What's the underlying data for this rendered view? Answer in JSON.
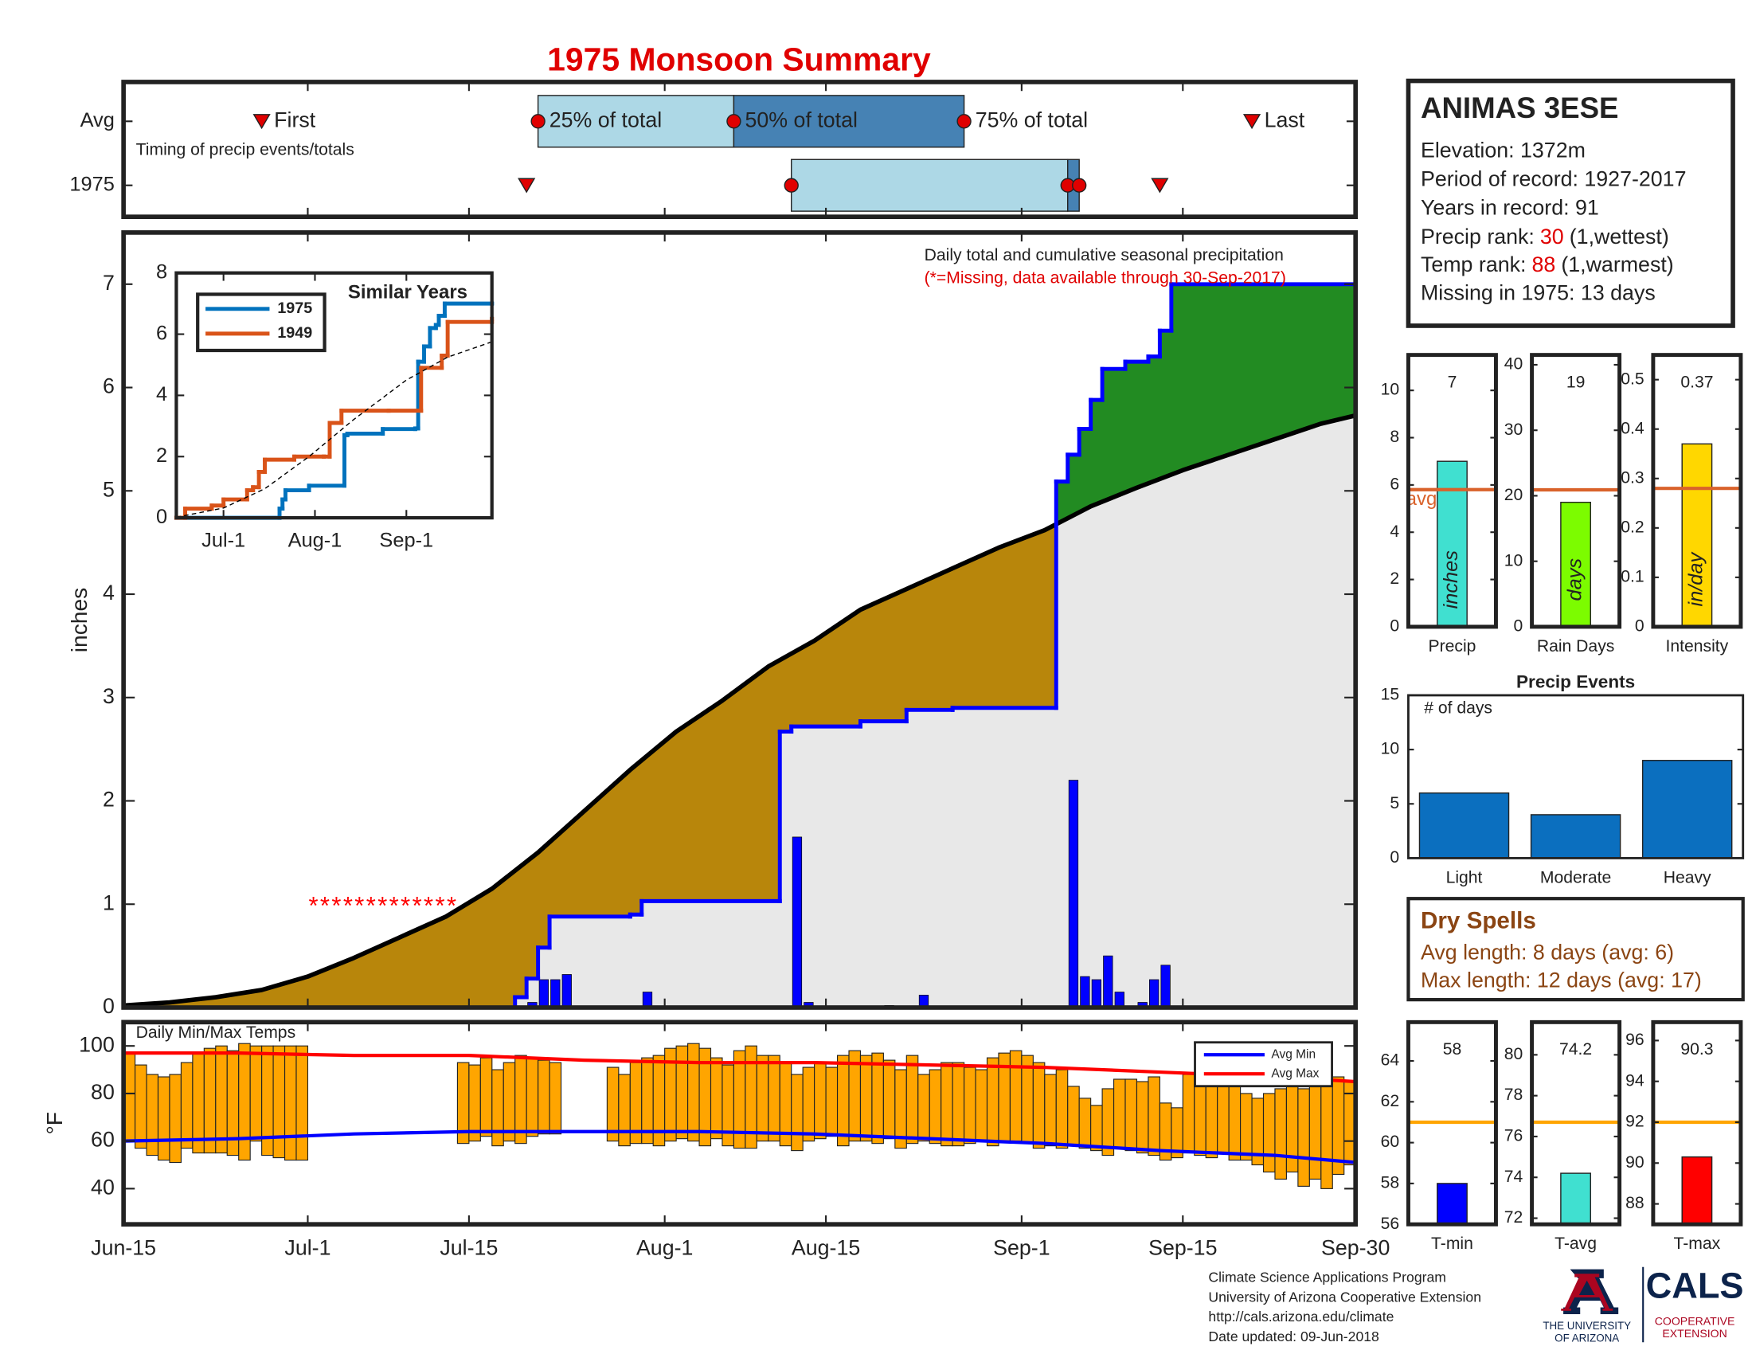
{
  "title": "1975 Monsoon Summary",
  "station": {
    "name": "ANIMAS 3ESE",
    "lines": [
      "Elevation: 1372m",
      "Period of record: 1927-2017",
      "Years in record: 91"
    ],
    "ranks": [
      {
        "label": "Precip rank:",
        "value": 30,
        "note": "(1,wettest)"
      },
      {
        "label": "Temp rank:",
        "value": 88,
        "note": "(1,warmest)"
      }
    ],
    "missing": "Missing in 1975: 13 days"
  },
  "dry_spells": {
    "title": "Dry Spells",
    "lines": [
      "Avg length: 8 days (avg: 6)",
      "Max length: 12 days (avg: 17)"
    ]
  },
  "footer": {
    "lines": [
      "Climate Science Applications Program",
      "University of Arizona Cooperative Extension",
      "http://cals.arizona.edu/climate",
      "Date updated: 09-Jun-2018"
    ],
    "logo": {
      "university": [
        "THE UNIVERSITY",
        "OF ARIZONA"
      ],
      "cals": "CALS",
      "extension": [
        "COOPERATIVE",
        "EXTENSION"
      ]
    }
  },
  "chart_data": [
    {
      "type": "timing",
      "annotation": "Timing of precip events/totals",
      "xlim": [
        0,
        107
      ],
      "rows": [
        {
          "name": "Avg",
          "first": 12,
          "p25": 36,
          "p50": 53,
          "p75": 73,
          "last": 98
        },
        {
          "name": "1975",
          "first": 35,
          "p25": 58,
          "p50": 82,
          "p75": 83,
          "last": 90
        }
      ],
      "marker_labels": {
        "first": "First",
        "p25": "25% of total",
        "p50": "50% of total",
        "p75": "75% of total",
        "last": "Last"
      },
      "colors": {
        "early": "#add8e6",
        "late": "#4682b4",
        "marker": "#e00000"
      }
    },
    {
      "type": "cumulative",
      "annotation": "Daily total and cumulative seasonal precipitation",
      "note": "(*=Missing, data available through 30-Sep-2017)",
      "ylabel": "inches",
      "xlim": [
        0,
        107
      ],
      "ylim": [
        0,
        7.5
      ],
      "yticks": [
        0,
        1,
        2,
        3,
        4,
        5,
        6,
        7
      ],
      "average": {
        "color": "#000000",
        "x": [
          0,
          4,
          8,
          12,
          16,
          20,
          24,
          28,
          32,
          36,
          40,
          44,
          48,
          52,
          56,
          60,
          64,
          68,
          72,
          76,
          80,
          84,
          88,
          92,
          96,
          100,
          104,
          107
        ],
        "values": [
          0.02,
          0.05,
          0.1,
          0.17,
          0.3,
          0.48,
          0.68,
          0.88,
          1.15,
          1.5,
          1.9,
          2.3,
          2.67,
          2.97,
          3.3,
          3.55,
          3.85,
          4.05,
          4.25,
          4.45,
          4.62,
          4.85,
          5.03,
          5.2,
          5.35,
          5.5,
          5.65,
          5.73
        ]
      },
      "year": {
        "color": "#0000ff",
        "x": [
          0,
          34,
          35,
          36,
          37,
          44,
          45,
          57,
          58,
          64,
          68,
          72,
          81,
          82,
          83,
          84,
          85,
          87,
          89,
          90,
          91,
          107
        ],
        "values": [
          0,
          0.1,
          0.28,
          0.58,
          0.88,
          0.9,
          1.03,
          2.67,
          2.72,
          2.77,
          2.88,
          2.9,
          5.09,
          5.35,
          5.6,
          5.88,
          6.18,
          6.25,
          6.3,
          6.55,
          7.0,
          7.0
        ]
      },
      "daily": {
        "color": "#0000ff",
        "x": [
          35,
          36,
          37,
          38,
          45,
          58,
          59,
          66,
          69,
          82,
          83,
          84,
          85,
          86,
          88,
          89,
          90
        ],
        "values": [
          0.05,
          0.27,
          0.27,
          0.32,
          0.15,
          1.65,
          0.05,
          0.02,
          0.12,
          2.2,
          0.3,
          0.27,
          0.5,
          0.15,
          0.05,
          0.27,
          0.41
        ]
      },
      "missing": {
        "marker": "*",
        "color": "#ff0000",
        "y": 1,
        "x": [
          16,
          17,
          18,
          19,
          20,
          21,
          22,
          23,
          24,
          25,
          26,
          27,
          28
        ]
      },
      "fill_colors": {
        "below": "#e8e8e8",
        "deficit": "#b8860b",
        "surplus": "#228b22"
      }
    },
    {
      "type": "line",
      "title": "Similar Years",
      "step": true,
      "xlim": [
        0,
        107
      ],
      "ylim": [
        0,
        8
      ],
      "yticks": [
        0,
        2,
        4,
        6,
        8
      ],
      "xticks": [
        {
          "value": 16,
          "label": "Jul-1"
        },
        {
          "value": 47,
          "label": "Aug-1"
        },
        {
          "value": 78,
          "label": "Sep-1"
        }
      ],
      "series": [
        {
          "name": "1975",
          "color": "#0072bd",
          "x": [
            0,
            35,
            36,
            37,
            45,
            57,
            58,
            70,
            81,
            82,
            84,
            86,
            88,
            89,
            91,
            107
          ],
          "values": [
            0,
            0.3,
            0.6,
            0.9,
            1.05,
            2.7,
            2.75,
            2.9,
            2.92,
            5.1,
            5.6,
            6.2,
            6.3,
            6.6,
            7.0,
            7.0
          ]
        },
        {
          "name": "1949",
          "color": "#d95319",
          "x": [
            0,
            3,
            12,
            16,
            24,
            26,
            28,
            30,
            40,
            50,
            52,
            56,
            72,
            83,
            90,
            92,
            107
          ],
          "values": [
            0,
            0.3,
            0.4,
            0.6,
            0.9,
            1.0,
            1.5,
            1.9,
            2.0,
            2.0,
            3.1,
            3.5,
            3.5,
            4.9,
            5.3,
            6.4,
            6.5
          ]
        },
        {
          "color": "#000000",
          "dashed": true,
          "x": [
            0,
            16,
            30,
            45,
            60,
            78,
            92,
            107
          ],
          "values": [
            0.02,
            0.32,
            0.95,
            2.0,
            3.2,
            4.5,
            5.25,
            5.75
          ]
        }
      ]
    },
    {
      "type": "summary-bar",
      "categories": [
        "Precip"
      ],
      "values": [
        7
      ],
      "unit": "inches",
      "color": "#40e0d0",
      "avg": 5.8,
      "avg_label": "avg",
      "avg_color": "#d9622b",
      "ylim": [
        0,
        11.5
      ],
      "yticks": [
        0,
        2,
        4,
        6,
        8,
        10
      ]
    },
    {
      "type": "summary-bar",
      "categories": [
        "Rain Days"
      ],
      "values": [
        19
      ],
      "unit": "days",
      "color": "#7cfc00",
      "avg": 20.9,
      "avg_color": "#d9622b",
      "ylim": [
        0,
        41.5
      ],
      "yticks": [
        0,
        10,
        20,
        30,
        40
      ]
    },
    {
      "type": "summary-bar",
      "categories": [
        "Intensity"
      ],
      "values": [
        0.37
      ],
      "unit": "in/day",
      "color": "#ffd700",
      "avg": 0.28,
      "avg_color": "#d9622b",
      "ylim": [
        0,
        0.55
      ],
      "yticks": [
        0,
        0.1,
        0.2,
        0.3,
        0.4,
        0.5
      ]
    },
    {
      "type": "bar",
      "title": "Precip Events",
      "annotation": "# of days",
      "categories": [
        "Light",
        "Moderate",
        "Heavy"
      ],
      "values": [
        6,
        4,
        9
      ],
      "color": "#0b6fbf",
      "ylim": [
        0,
        15
      ],
      "yticks": [
        0,
        5,
        10,
        15
      ]
    },
    {
      "type": "range-bar",
      "title": "Daily Min/Max Temps",
      "ylabel": "°F",
      "color": "#ffa500",
      "legend": "upper right",
      "xlim": [
        0,
        107
      ],
      "ylim": [
        25,
        110
      ],
      "yticks": [
        40,
        60,
        80,
        100
      ],
      "xticks": [
        {
          "value": 0,
          "label": "Jun-15"
        },
        {
          "value": 16,
          "label": "Jul-1"
        },
        {
          "value": 30,
          "label": "Jul-15"
        },
        {
          "value": 47,
          "label": "Aug-1"
        },
        {
          "value": 61,
          "label": "Aug-15"
        },
        {
          "value": 78,
          "label": "Sep-1"
        },
        {
          "value": 92,
          "label": "Sep-15"
        },
        {
          "value": 107,
          "label": "Sep-30"
        }
      ],
      "x": [
        0,
        1,
        2,
        3,
        4,
        5,
        6,
        7,
        8,
        9,
        10,
        11,
        12,
        13,
        14,
        15,
        16,
        17,
        18,
        19,
        20,
        21,
        22,
        23,
        24,
        25,
        26,
        27,
        28,
        29,
        30,
        31,
        32,
        33,
        34,
        35,
        36,
        37,
        38,
        39,
        40,
        41,
        42,
        43,
        44,
        45,
        46,
        47,
        48,
        49,
        50,
        51,
        52,
        53,
        54,
        55,
        56,
        57,
        58,
        59,
        60,
        61,
        62,
        63,
        64,
        65,
        66,
        67,
        68,
        69,
        70,
        71,
        72,
        73,
        74,
        75,
        76,
        77,
        78,
        79,
        80,
        81,
        82,
        83,
        84,
        85,
        86,
        87,
        88,
        89,
        90,
        91,
        92,
        93,
        94,
        95,
        96,
        97,
        98,
        99,
        100,
        101,
        102,
        103,
        104,
        105,
        106
      ],
      "max": [
        97,
        92,
        88,
        87,
        88,
        93,
        97,
        99,
        100,
        98,
        101,
        100,
        100,
        100,
        100,
        100,
        null,
        null,
        null,
        null,
        null,
        null,
        null,
        null,
        null,
        null,
        null,
        null,
        null,
        93,
        92,
        95,
        90,
        93,
        96,
        95,
        94,
        93,
        null,
        null,
        null,
        null,
        91,
        88,
        93,
        95,
        96,
        99,
        100,
        101,
        99,
        95,
        92,
        98,
        100,
        96,
        96,
        93,
        88,
        91,
        93,
        91,
        96,
        98,
        96,
        97,
        94,
        90,
        96,
        88,
        90,
        93,
        93,
        91,
        90,
        95,
        97,
        98,
        96,
        93,
        88,
        90,
        83,
        78,
        75,
        82,
        86,
        86,
        85,
        87,
        76,
        74,
        88,
        89,
        88,
        87,
        85,
        80,
        78,
        80,
        82,
        83,
        82,
        86,
        87,
        87,
        85
      ],
      "min": [
        60,
        57,
        54,
        52,
        51,
        57,
        55,
        55,
        55,
        54,
        52,
        60,
        54,
        53,
        52,
        52,
        null,
        null,
        null,
        null,
        null,
        null,
        null,
        null,
        null,
        null,
        null,
        null,
        null,
        59,
        60,
        62,
        58,
        60,
        59,
        62,
        63,
        63,
        null,
        null,
        null,
        null,
        60,
        58,
        59,
        59,
        58,
        60,
        61,
        60,
        58,
        61,
        58,
        57,
        57,
        60,
        60,
        58,
        56,
        60,
        61,
        62,
        58,
        60,
        60,
        59,
        61,
        57,
        59,
        60,
        59,
        58,
        58,
        59,
        60,
        58,
        60,
        60,
        59,
        57,
        58,
        57,
        58,
        57,
        56,
        54,
        57,
        56,
        55,
        54,
        52,
        53,
        55,
        54,
        53,
        55,
        52,
        52,
        50,
        47,
        44,
        47,
        41,
        44,
        40,
        46,
        50
      ],
      "series": [
        {
          "name": "Avg Min",
          "color": "#0000ff",
          "x": [
            0,
            10,
            20,
            30,
            40,
            50,
            60,
            70,
            80,
            90,
            100,
            107
          ],
          "values": [
            60,
            61,
            63,
            64,
            64,
            64,
            63,
            61,
            59,
            56,
            54,
            51
          ]
        },
        {
          "name": "Avg Max",
          "color": "#ff0000",
          "x": [
            0,
            10,
            20,
            30,
            40,
            50,
            60,
            70,
            80,
            90,
            100,
            107
          ],
          "values": [
            97,
            97,
            96,
            96,
            94,
            93,
            93,
            92,
            91,
            89,
            87,
            85
          ]
        }
      ]
    },
    {
      "type": "summary-bar",
      "categories": [
        "T-min"
      ],
      "values": [
        58
      ],
      "color": "#0000ff",
      "avg": 61,
      "avg_color": "#ffa500",
      "ylim": [
        56,
        65.9
      ],
      "yticks": [
        56,
        58,
        60,
        62,
        64
      ]
    },
    {
      "type": "summary-bar",
      "categories": [
        "T-avg"
      ],
      "values": [
        74.2
      ],
      "color": "#40e0d0",
      "avg": 76.7,
      "avg_color": "#ffa500",
      "ylim": [
        71.7,
        81.6
      ],
      "yticks": [
        72,
        74,
        76,
        78,
        80
      ]
    },
    {
      "type": "summary-bar",
      "categories": [
        "T-max"
      ],
      "values": [
        90.3
      ],
      "color": "#ff0000",
      "avg": 92,
      "avg_color": "#ffa500",
      "ylim": [
        87,
        96.9
      ],
      "yticks": [
        88,
        90,
        92,
        94,
        96
      ]
    }
  ]
}
